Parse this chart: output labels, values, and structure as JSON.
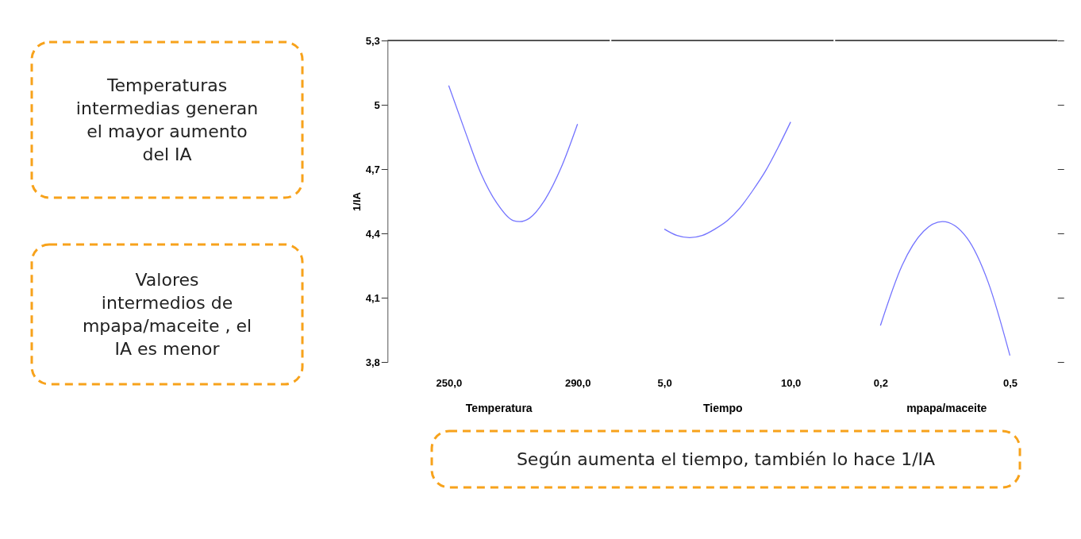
{
  "chart_data": [
    {
      "type": "line",
      "xlabel": "Temperatura",
      "ylabel": "1/IA",
      "xlim": [
        231,
        300
      ],
      "xticks": [
        {
          "value": 250,
          "label": "250,0"
        },
        {
          "value": 290,
          "label": "290,0"
        }
      ],
      "ylim": [
        3.8,
        5.3
      ],
      "yticks": [
        {
          "value": 3.8,
          "label": "3,8"
        },
        {
          "value": 4.1,
          "label": "4,1"
        },
        {
          "value": 4.4,
          "label": "4,4"
        },
        {
          "value": 4.7,
          "label": "4,7"
        },
        5,
        {
          "value": 5.3,
          "label": "5,3"
        }
      ],
      "marker": "none",
      "line_style": "solid",
      "series": [
        {
          "color": "#7373ff",
          "x": [
            250,
            255,
            260,
            265,
            270,
            272,
            275,
            280,
            285,
            290
          ],
          "values": [
            5.09,
            4.88,
            4.68,
            4.54,
            4.46,
            4.455,
            4.47,
            4.56,
            4.71,
            4.91
          ]
        }
      ],
      "annotations": [
        "Temperaturas intermedias generan el mayor aumento del IA",
        "Valores intermedios de mpapa/maceite , el IA es menor",
        "Según aumenta el tiempo, también lo hace 1/IA"
      ]
    },
    {
      "type": "line",
      "xlabel": "Tiempo",
      "xlim": [
        2.9,
        11.7
      ],
      "xticks": [
        {
          "value": 5,
          "label": "5,0"
        },
        {
          "value": 10,
          "label": "10,0"
        }
      ],
      "ylim": [
        3.8,
        5.3
      ],
      "tick_labels": "x",
      "marker": "none",
      "line_style": "solid",
      "series": [
        {
          "color": "#7373ff",
          "x": [
            5,
            5.5,
            6,
            6.5,
            7,
            7.5,
            8,
            8.5,
            9,
            9.5,
            10
          ],
          "values": [
            4.42,
            4.39,
            4.38,
            4.39,
            4.42,
            4.46,
            4.52,
            4.6,
            4.69,
            4.8,
            4.92
          ]
        }
      ]
    },
    {
      "type": "line",
      "xlabel": "mpapa/maceite",
      "xlim": [
        0.095,
        0.61
      ],
      "xticks": [
        {
          "value": 0.2,
          "label": "0,2"
        },
        {
          "value": 0.5,
          "label": "0,5"
        }
      ],
      "ylim": [
        3.8,
        5.3
      ],
      "yticks": [
        3.8,
        4.1,
        4.4,
        4.7,
        5,
        5.3
      ],
      "tick_labels": "x",
      "marker": "none",
      "line_style": "solid",
      "series": [
        {
          "color": "#7373ff",
          "x": [
            0.2,
            0.25,
            0.3,
            0.344,
            0.4,
            0.45,
            0.5
          ],
          "values": [
            3.97,
            4.25,
            4.41,
            4.455,
            4.38,
            4.17,
            3.83
          ]
        }
      ]
    }
  ]
}
